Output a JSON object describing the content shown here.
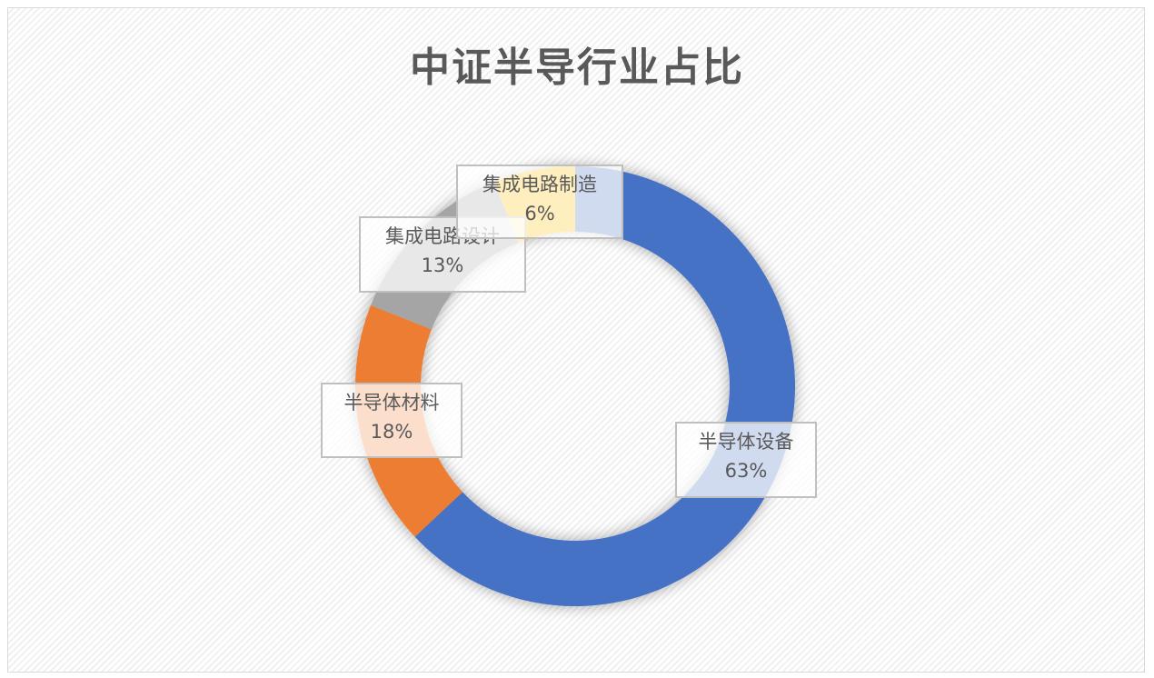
{
  "chart_data": {
    "type": "pie",
    "variant": "donut",
    "title": "中证半导行业占比",
    "categories": [
      "半导体设备",
      "半导体材料",
      "集成电路设计",
      "集成电路制造"
    ],
    "values": [
      63,
      18,
      13,
      6
    ],
    "labels": [
      "63%",
      "18%",
      "13%",
      "6%"
    ],
    "colors": [
      "#4472C4",
      "#ED7D31",
      "#A5A5A5",
      "#FFC000"
    ],
    "legend": "none"
  }
}
